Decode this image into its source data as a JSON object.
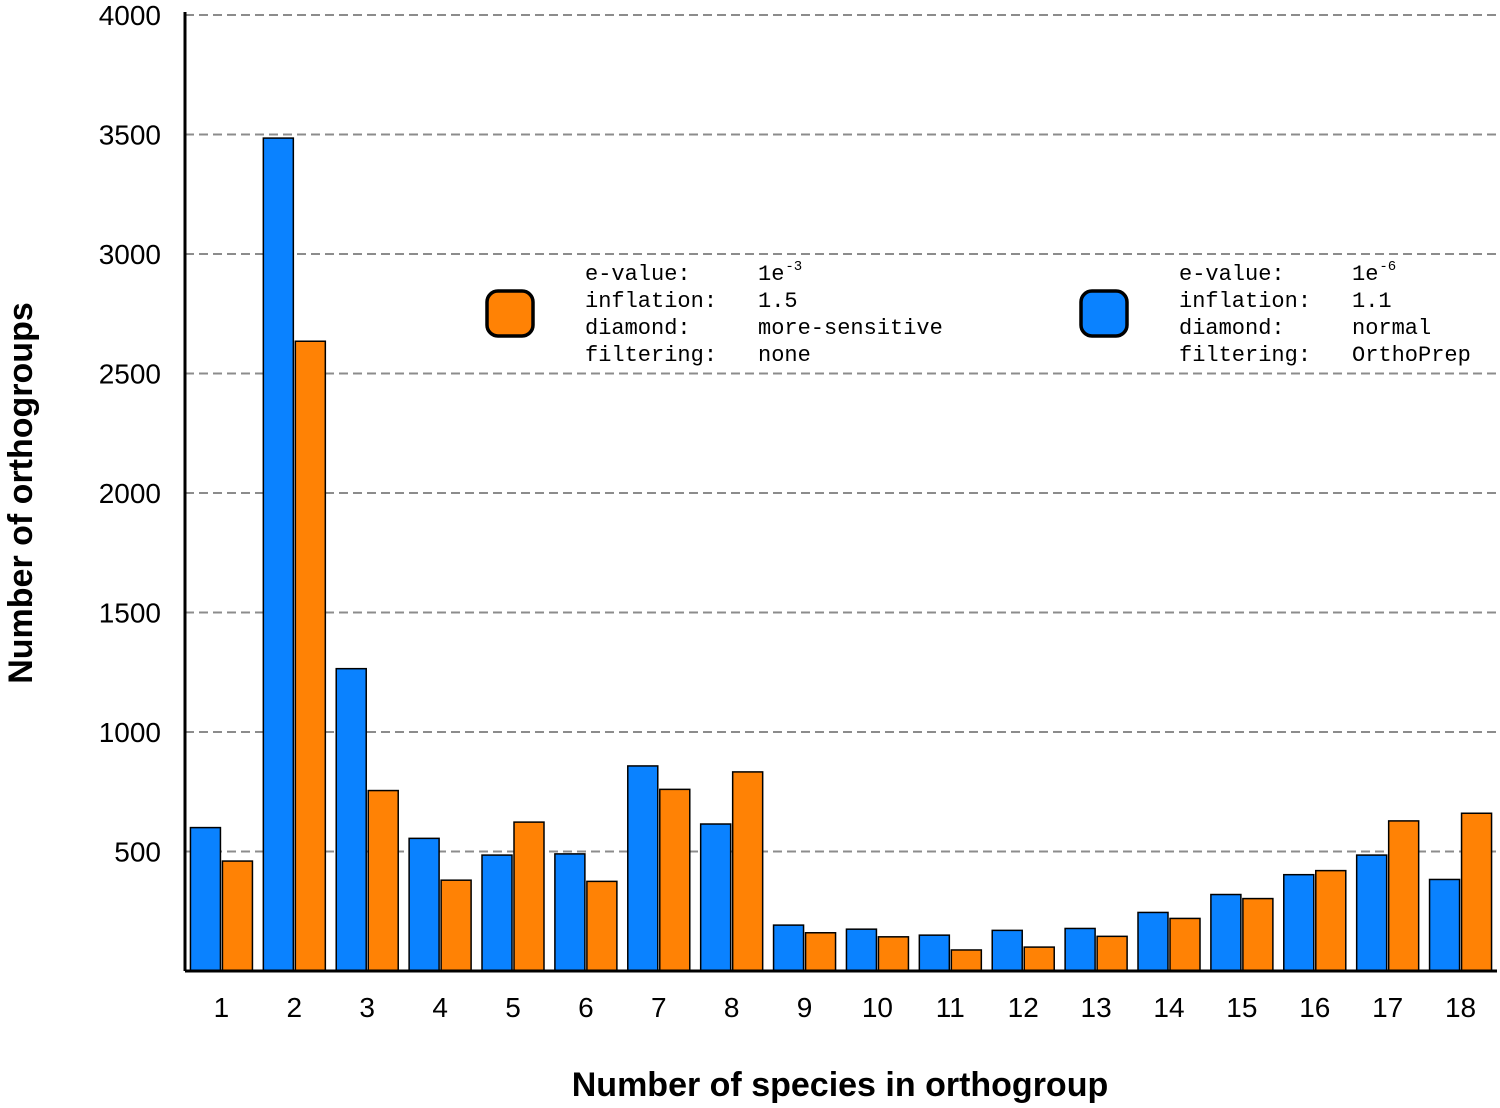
{
  "chart_data": {
    "type": "bar",
    "title": "",
    "xlabel": "Number of species in orthogroup",
    "ylabel": "Number of orthogroups",
    "ylim": [
      0,
      4000
    ],
    "yticks": [
      "500",
      "1000",
      "1500",
      "2000",
      "2500",
      "3000",
      "3500",
      "4000"
    ],
    "categories": [
      "1",
      "2",
      "3",
      "4",
      "5",
      "6",
      "7",
      "8",
      "9",
      "10",
      "11",
      "12",
      "13",
      "14",
      "15",
      "16",
      "17",
      "18"
    ],
    "grid": "horizontal dashed",
    "series": [
      {
        "color": "#0a82ff",
        "values": [
          600,
          3485,
          1265,
          555,
          485,
          490,
          858,
          615,
          192,
          175,
          150,
          170,
          178,
          245,
          320,
          403,
          485,
          383
        ]
      },
      {
        "color": "#ff8205",
        "values": [
          460,
          2635,
          755,
          380,
          623,
          375,
          760,
          833,
          160,
          143,
          88,
          100,
          145,
          220,
          303,
          420,
          628,
          660
        ]
      }
    ],
    "legend": [
      {
        "color": "#ff8205",
        "lines": [
          {
            "key": "e-value:",
            "value": "1e",
            "sup": "-3"
          },
          {
            "key": "inflation:",
            "value": "1.5"
          },
          {
            "key": "diamond:",
            "value": "more-sensitive"
          },
          {
            "key": "filtering:",
            "value": "none"
          }
        ]
      },
      {
        "color": "#0a82ff",
        "lines": [
          {
            "key": "e-value:",
            "value": "1e",
            "sup": "-6"
          },
          {
            "key": "inflation:",
            "value": "1.1"
          },
          {
            "key": "diamond:",
            "value": "normal"
          },
          {
            "key": "filtering:",
            "value": "OrthoPrep"
          }
        ]
      }
    ]
  }
}
